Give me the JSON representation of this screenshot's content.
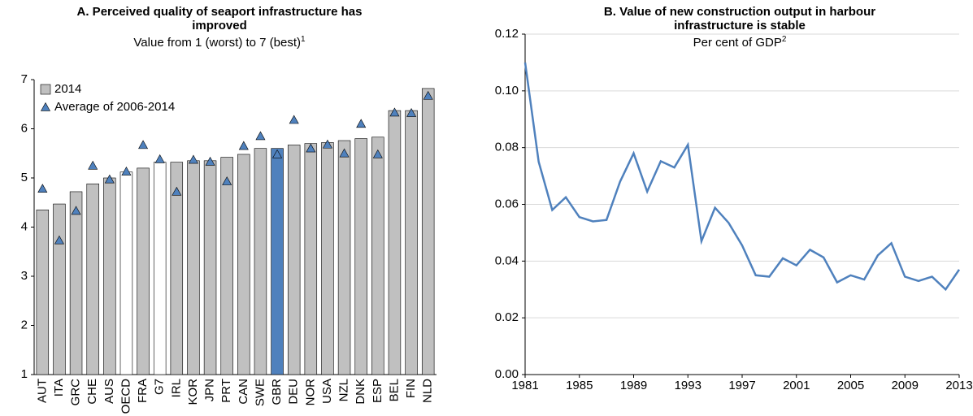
{
  "chart_data": [
    {
      "type": "bar",
      "title": "A. Perceived quality of seaport infrastructure has improved",
      "subtitle": "Value from 1 (worst) to 7 (best)",
      "subtitle_note": "1",
      "categories": [
        "AUT",
        "ITA",
        "GRC",
        "CHE",
        "AUS",
        "OECD",
        "FRA",
        "G7",
        "IRL",
        "KOR",
        "JPN",
        "PRT",
        "CAN",
        "SWE",
        "GBR",
        "DEU",
        "NOR",
        "USA",
        "NZL",
        "DNK",
        "ESP",
        "BEL",
        "FIN",
        "NLD"
      ],
      "series": [
        {
          "name": "2014",
          "color": "#c0c0c0",
          "colors": [
            "#c0c0c0",
            "#c0c0c0",
            "#c0c0c0",
            "#c0c0c0",
            "#c0c0c0",
            "#ffffff",
            "#c0c0c0",
            "#ffffff",
            "#c0c0c0",
            "#c0c0c0",
            "#c0c0c0",
            "#c0c0c0",
            "#c0c0c0",
            "#c0c0c0",
            "#4f81bd",
            "#c0c0c0",
            "#c0c0c0",
            "#c0c0c0",
            "#c0c0c0",
            "#c0c0c0",
            "#c0c0c0",
            "#c0c0c0",
            "#c0c0c0",
            "#c0c0c0"
          ],
          "values": [
            4.35,
            4.47,
            4.72,
            4.88,
            5.0,
            5.12,
            5.2,
            5.32,
            5.32,
            5.35,
            5.35,
            5.42,
            5.48,
            5.6,
            5.6,
            5.67,
            5.7,
            5.72,
            5.76,
            5.8,
            5.83,
            6.37,
            6.37,
            6.82
          ]
        },
        {
          "name": "Average of 2006-2014",
          "color": "#4f81bd",
          "marker": "triangle",
          "values": [
            4.78,
            3.73,
            4.33,
            5.25,
            4.97,
            5.13,
            5.67,
            5.38,
            4.72,
            5.37,
            5.33,
            4.93,
            5.65,
            5.85,
            5.48,
            6.18,
            5.6,
            5.68,
            5.5,
            6.1,
            5.48,
            6.33,
            6.32,
            6.67
          ]
        }
      ],
      "ylim": [
        1,
        7
      ],
      "yticks": [
        1,
        2,
        3,
        4,
        5,
        6,
        7
      ],
      "grid": false,
      "legend": "top-left"
    },
    {
      "type": "line",
      "title": "B. Value of new construction output in harbour infrastructure is stable",
      "subtitle": "Per cent of GDP",
      "subtitle_note": "2",
      "x": [
        1981,
        1982,
        1983,
        1984,
        1985,
        1986,
        1987,
        1988,
        1989,
        1990,
        1991,
        1992,
        1993,
        1994,
        1995,
        1996,
        1997,
        1998,
        1999,
        2000,
        2001,
        2002,
        2003,
        2004,
        2005,
        2006,
        2007,
        2008,
        2009,
        2010,
        2011,
        2012,
        2013
      ],
      "series": [
        {
          "color": "#4f81bd",
          "values": [
            0.11,
            0.075,
            0.058,
            0.0625,
            0.0555,
            0.054,
            0.0545,
            0.068,
            0.078,
            0.0645,
            0.0752,
            0.073,
            0.081,
            0.047,
            0.0588,
            0.0535,
            0.0455,
            0.035,
            0.0345,
            0.041,
            0.0385,
            0.044,
            0.0413,
            0.0325,
            0.035,
            0.0335,
            0.042,
            0.0463,
            0.0345,
            0.033,
            0.0345,
            0.03,
            0.037
          ]
        }
      ],
      "xlim": [
        1981,
        2013
      ],
      "xticks": [
        1981,
        1985,
        1989,
        1993,
        1997,
        2001,
        2005,
        2009,
        2013
      ],
      "ylim": [
        0,
        0.12
      ],
      "yticks": [
        {
          "value": 0,
          "label": "0.00"
        },
        0.02,
        0.04,
        0.06,
        0.08,
        {
          "value": 0.1,
          "label": "0.10"
        },
        0.12
      ],
      "grid": true
    }
  ]
}
